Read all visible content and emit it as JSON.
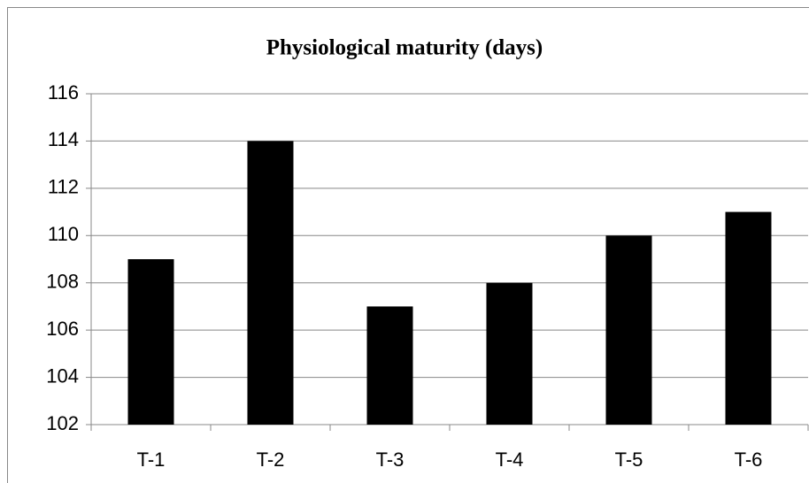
{
  "chart_data": {
    "type": "bar",
    "title": "Physiological maturity (days)",
    "categories": [
      "T-1",
      "T-2",
      "T-3",
      "T-4",
      "T-5",
      "T-6"
    ],
    "values": [
      109,
      114,
      107,
      108,
      110,
      111
    ],
    "color": "#000000",
    "ylim": [
      102,
      116
    ],
    "yticks": [
      102,
      104,
      106,
      108,
      110,
      112,
      114,
      116
    ],
    "grid": true
  }
}
